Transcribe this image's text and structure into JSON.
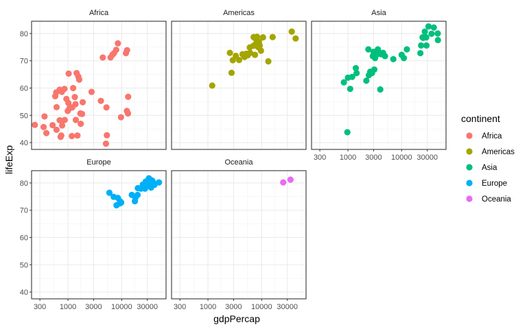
{
  "chart_data": {
    "type": "scatter",
    "title": "",
    "xlabel": "gdpPercap",
    "ylabel": "lifeExp",
    "x_scale": "log10",
    "xlim": [
      210,
      67000
    ],
    "ylim": [
      37.5,
      84.5
    ],
    "x_ticks": [
      300,
      1000,
      3000,
      10000,
      30000
    ],
    "x_tick_labels": [
      "300",
      "1000",
      "3000",
      "10000",
      "30000"
    ],
    "y_ticks": [
      40,
      50,
      60,
      70,
      80
    ],
    "y_tick_labels": [
      "40",
      "50",
      "60",
      "70",
      "80"
    ],
    "grid": true,
    "facet_by": "continent",
    "legend": {
      "title": "continent",
      "position": "right",
      "entries": [
        {
          "label": "Africa",
          "color": "#F8766D"
        },
        {
          "label": "Americas",
          "color": "#A3A500"
        },
        {
          "label": "Asia",
          "color": "#00BF7D"
        },
        {
          "label": "Europe",
          "color": "#00B0F6"
        },
        {
          "label": "Oceania",
          "color": "#E76BF3"
        }
      ]
    },
    "panels": [
      {
        "name": "Africa",
        "color": "#F8766D",
        "points": [
          [
            242,
            46.5
          ],
          [
            366,
            49.6
          ],
          [
            352,
            45.7
          ],
          [
            396,
            43.5
          ],
          [
            517,
            46.4
          ],
          [
            612,
            44.7
          ],
          [
            614,
            53.0
          ],
          [
            579,
            57.0
          ],
          [
            604,
            58.4
          ],
          [
            700,
            59.4
          ],
          [
            770,
            58.6
          ],
          [
            860,
            59.7
          ],
          [
            935,
            56.0
          ],
          [
            1020,
            54.5
          ],
          [
            1060,
            52.5
          ],
          [
            1200,
            52.9
          ],
          [
            990,
            51.6
          ],
          [
            870,
            48.3
          ],
          [
            700,
            48.2
          ],
          [
            780,
            46.3
          ],
          [
            750,
            42.6
          ],
          [
            730,
            42.1
          ],
          [
            1030,
            65.3
          ],
          [
            1450,
            65.5
          ],
          [
            1620,
            63.1
          ],
          [
            1560,
            64.2
          ],
          [
            1250,
            60.0
          ],
          [
            1340,
            56.7
          ],
          [
            1380,
            54.1
          ],
          [
            1400,
            48.3
          ],
          [
            1700,
            50.7
          ],
          [
            1830,
            50.5
          ],
          [
            1880,
            54.8
          ],
          [
            1730,
            46.9
          ],
          [
            1500,
            42.6
          ],
          [
            1180,
            42.4
          ],
          [
            2750,
            58.6
          ],
          [
            4100,
            55.3
          ],
          [
            5200,
            52.9
          ],
          [
            5300,
            42.7
          ],
          [
            5100,
            39.6
          ],
          [
            4450,
            71.2
          ],
          [
            6200,
            71.2
          ],
          [
            6700,
            72.2
          ],
          [
            7200,
            72.8
          ],
          [
            7900,
            74.0
          ],
          [
            8500,
            76.4
          ],
          [
            9700,
            49.3
          ],
          [
            12000,
            72.8
          ],
          [
            12600,
            73.9
          ],
          [
            12500,
            51.6
          ],
          [
            13100,
            50.7
          ],
          [
            13200,
            56.8
          ]
        ]
      },
      {
        "name": "Americas",
        "color": "#A3A500",
        "points": [
          [
            1200,
            60.9
          ],
          [
            2750,
            65.6
          ],
          [
            2900,
            70.2
          ],
          [
            2560,
            72.9
          ],
          [
            3800,
            70.3
          ],
          [
            3300,
            71.8
          ],
          [
            4800,
            71.4
          ],
          [
            4400,
            72.4
          ],
          [
            5200,
            72.6
          ],
          [
            6100,
            72.9
          ],
          [
            5500,
            72.0
          ],
          [
            6000,
            74.9
          ],
          [
            7500,
            72.2
          ],
          [
            7000,
            75.5
          ],
          [
            7800,
            76.2
          ],
          [
            8600,
            75.0
          ],
          [
            9200,
            75.6
          ],
          [
            8000,
            76.4
          ],
          [
            9700,
            73.7
          ],
          [
            7500,
            78.3
          ],
          [
            8200,
            78.8
          ],
          [
            10600,
            78.6
          ],
          [
            16000,
            78.7
          ],
          [
            13300,
            69.8
          ],
          [
            36300,
            80.7
          ],
          [
            42900,
            78.2
          ],
          [
            8900,
            77.0
          ],
          [
            7100,
            78.7
          ]
        ]
      },
      {
        "name": "Asia",
        "color": "#00BF7D",
        "points": [
          [
            975,
            43.8
          ],
          [
            840,
            62.1
          ],
          [
            1000,
            63.8
          ],
          [
            1200,
            64.1
          ],
          [
            1450,
            65.5
          ],
          [
            1400,
            67.3
          ],
          [
            1100,
            59.7
          ],
          [
            2200,
            62.7
          ],
          [
            2450,
            64.7
          ],
          [
            2800,
            65.5
          ],
          [
            2600,
            66.0
          ],
          [
            3100,
            66.8
          ],
          [
            2400,
            74.2
          ],
          [
            3000,
            73.3
          ],
          [
            2900,
            71.7
          ],
          [
            3500,
            72.4
          ],
          [
            3200,
            71.0
          ],
          [
            3700,
            72.6
          ],
          [
            3900,
            72.9
          ],
          [
            4200,
            72.4
          ],
          [
            3600,
            74.2
          ],
          [
            4500,
            72.9
          ],
          [
            4000,
            59.5
          ],
          [
            4900,
            71.7
          ],
          [
            7000,
            70.6
          ],
          [
            10000,
            72.2
          ],
          [
            11000,
            71.0
          ],
          [
            12500,
            74.2
          ],
          [
            22300,
            72.8
          ],
          [
            23000,
            75.6
          ],
          [
            25200,
            78.4
          ],
          [
            24500,
            78.6
          ],
          [
            28700,
            78.6
          ],
          [
            31600,
            82.6
          ],
          [
            39700,
            82.2
          ],
          [
            27000,
            80.7
          ],
          [
            36000,
            79.9
          ],
          [
            47000,
            80.0
          ],
          [
            47300,
            77.6
          ],
          [
            29000,
            75.6
          ]
        ]
      },
      {
        "name": "Europe",
        "color": "#00B0F6",
        "points": [
          [
            5900,
            76.4
          ],
          [
            7100,
            74.9
          ],
          [
            8500,
            74.5
          ],
          [
            8000,
            71.8
          ],
          [
            9250,
            72.5
          ],
          [
            9800,
            72.8
          ],
          [
            9300,
            73.3
          ],
          [
            15400,
            75.6
          ],
          [
            18000,
            74.5
          ],
          [
            17600,
            73.3
          ],
          [
            19800,
            75.6
          ],
          [
            22800,
            77.9
          ],
          [
            20000,
            78.1
          ],
          [
            25800,
            78.1
          ],
          [
            27200,
            77.9
          ],
          [
            24700,
            79.4
          ],
          [
            28600,
            78.9
          ],
          [
            30800,
            80.2
          ],
          [
            28000,
            80.5
          ],
          [
            33200,
            79.4
          ],
          [
            32100,
            81.7
          ],
          [
            36200,
            79.5
          ],
          [
            36100,
            79.8
          ],
          [
            35300,
            78.3
          ],
          [
            36800,
            80.9
          ],
          [
            38000,
            80.5
          ],
          [
            40700,
            79.3
          ],
          [
            49400,
            80.2
          ],
          [
            33700,
            81.2
          ],
          [
            31000,
            80.9
          ]
        ]
      },
      {
        "name": "Oceania",
        "color": "#E76BF3",
        "points": [
          [
            25200,
            80.2
          ],
          [
            34400,
            81.2
          ]
        ]
      }
    ]
  },
  "facet_labels": [
    "Africa",
    "Americas",
    "Asia",
    "Europe",
    "Oceania"
  ]
}
